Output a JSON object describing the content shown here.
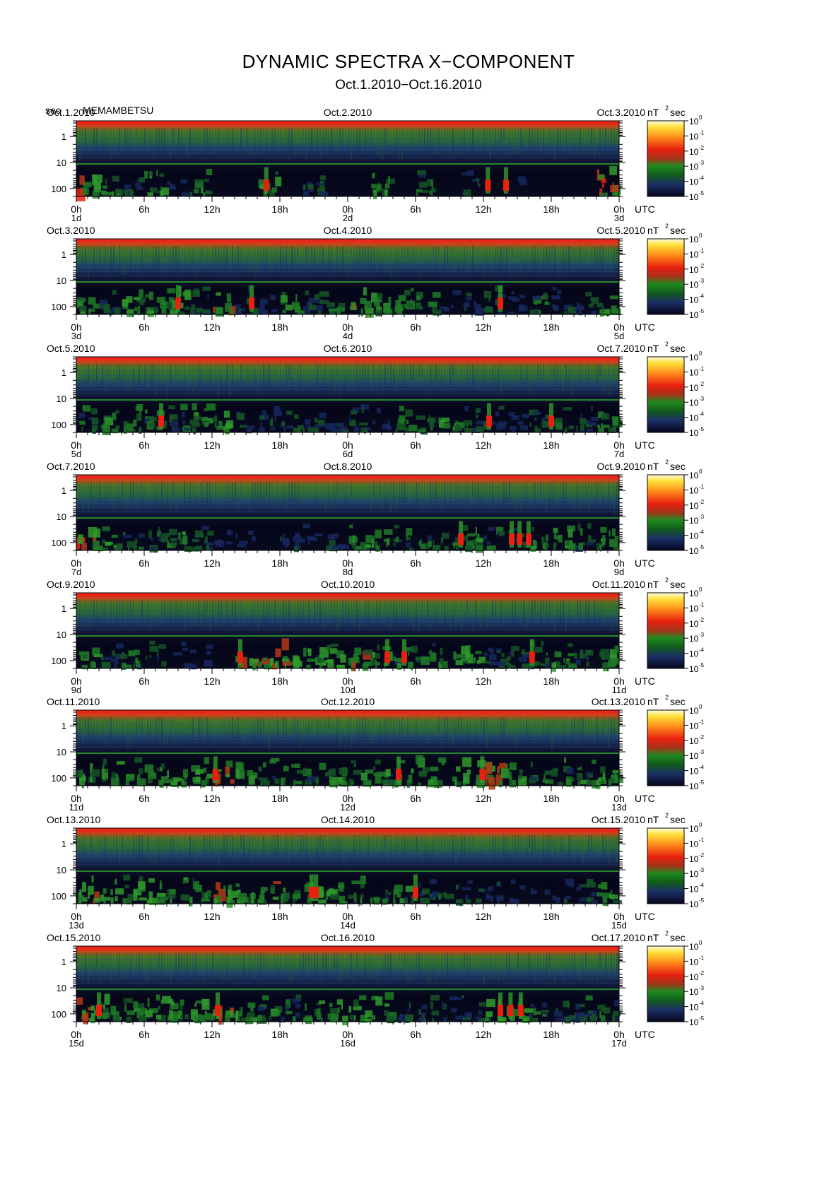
{
  "title": "DYNAMIC SPECTRA X−COMPONENT",
  "subtitle": "Oct.1.2010−Oct.16.2010",
  "y_unit": "sec",
  "station": "MEMAMBETSU",
  "utc_label": "UTC",
  "colorbar_unit_base": "nT",
  "colorbar_unit_exp": "2",
  "colorbar_unit_suffix": "sec",
  "colors": {
    "background": "#ffffff",
    "spectrum_low": "#06061c",
    "spectrum_mid": "#1f8a1f",
    "spectrum_high": "#e8200f",
    "spectrum_max": "#ffe23a"
  },
  "chart_data": {
    "type": "heatmap",
    "xlabel": "UTC",
    "ylabel": "sec",
    "y_ticks": [
      "1",
      "10",
      "100"
    ],
    "x_tick_labels": [
      "0h",
      "6h",
      "12h",
      "18h",
      "0h",
      "6h",
      "12h",
      "18h",
      "0h"
    ],
    "colorbar": {
      "unit": "nT²sec",
      "ticks": [
        {
          "base": "10",
          "exp": "0"
        },
        {
          "base": "10",
          "exp": "-1"
        },
        {
          "base": "10",
          "exp": "-2"
        },
        {
          "base": "10",
          "exp": "-3"
        },
        {
          "base": "10",
          "exp": "-4"
        },
        {
          "base": "10",
          "exp": "-5"
        }
      ]
    },
    "panels": [
      {
        "date_left": "Oct.1.2010",
        "date_mid": "Oct.2.2010",
        "date_right": "Oct.3.2010",
        "day_left": "1d",
        "day_mid": "2d",
        "day_right": "3d",
        "activity": [
          0.75,
          0.5,
          0.3,
          0.6,
          0.2,
          0.5,
          0.1,
          0.1,
          0.55,
          0.1,
          0.35,
          0.05,
          0.1,
          0.5,
          0.1,
          0.45,
          0.15,
          0.3,
          0.1,
          0.2,
          0.1,
          0.15,
          0.15,
          0.8
        ],
        "bursts": [
          16.8,
          36.4,
          38.0
        ]
      },
      {
        "date_left": "Oct.3.2010",
        "date_mid": "Oct.4.2010",
        "date_right": "Oct.5.2010",
        "day_left": "3d",
        "day_mid": "4d",
        "day_right": "5d",
        "activity": [
          0.6,
          0.3,
          0.55,
          0.5,
          0.6,
          0.35,
          0.7,
          0.3,
          0.2,
          0.5,
          0.35,
          0.4,
          0.75,
          0.5,
          0.55,
          0.4,
          0.2,
          0.3,
          0.35,
          0.25,
          0.4,
          0.3,
          0.35,
          0.55
        ],
        "bursts": [
          9.0,
          15.5,
          37.5
        ]
      },
      {
        "date_left": "Oct.5.2010",
        "date_mid": "Oct.6.2010",
        "date_right": "Oct.7.2010",
        "day_left": "5d",
        "day_mid": "6d",
        "day_right": "7d",
        "activity": [
          0.4,
          0.6,
          0.5,
          0.45,
          0.4,
          0.5,
          0.6,
          0.3,
          0.3,
          0.35,
          0.3,
          0.3,
          0.35,
          0.25,
          0.5,
          0.45,
          0.5,
          0.35,
          0.3,
          0.25,
          0.3,
          0.4,
          0.35,
          0.5
        ],
        "bursts": [
          7.5,
          36.5,
          42.0
        ]
      },
      {
        "date_left": "Oct.7.2010",
        "date_mid": "Oct.8.2010",
        "date_right": "Oct.9.2010",
        "day_left": "7d",
        "day_mid": "8d",
        "day_right": "9d",
        "activity": [
          0.95,
          0.6,
          0.45,
          0.4,
          0.5,
          0.35,
          0.2,
          0.2,
          0.15,
          0.3,
          0.2,
          0.3,
          0.55,
          0.6,
          0.45,
          0.5,
          0.5,
          0.55,
          0.4,
          0.3,
          0.6,
          0.55,
          0.4,
          0.55
        ],
        "bursts": [
          34.0,
          38.5,
          39.2,
          40.0
        ]
      },
      {
        "date_left": "Oct.9.2010",
        "date_mid": "Oct.10.2010",
        "date_right": "Oct.11.2010",
        "day_left": "9d",
        "day_mid": "10d",
        "day_right": "11d",
        "activity": [
          0.5,
          0.3,
          0.45,
          0.35,
          0.2,
          0.25,
          0.1,
          0.75,
          0.7,
          0.65,
          0.65,
          0.6,
          0.7,
          0.6,
          0.5,
          0.45,
          0.55,
          0.6,
          0.3,
          0.35,
          0.4,
          0.5,
          0.3,
          0.55
        ],
        "bursts": [
          14.5,
          27.5,
          29.0,
          40.3
        ]
      },
      {
        "date_left": "Oct.11.2010",
        "date_mid": "Oct.12.2010",
        "date_right": "Oct.13.2010",
        "day_left": "11d",
        "day_mid": "12d",
        "day_right": "13d",
        "activity": [
          0.6,
          0.55,
          0.5,
          0.5,
          0.6,
          0.55,
          0.75,
          0.55,
          0.5,
          0.5,
          0.45,
          0.55,
          0.6,
          0.5,
          0.55,
          0.55,
          0.6,
          0.65,
          0.75,
          0.55,
          0.45,
          0.5,
          0.5,
          0.55
        ],
        "bursts": [
          12.3,
          28.5,
          35.9
        ]
      },
      {
        "date_left": "Oct.13.2010",
        "date_mid": "Oct.14.2010",
        "date_right": "Oct.15.2010",
        "day_left": "13d",
        "day_mid": "14d",
        "day_right": "15d",
        "activity": [
          0.7,
          0.65,
          0.55,
          0.6,
          0.55,
          0.5,
          0.7,
          0.55,
          0.65,
          0.5,
          0.6,
          0.55,
          0.5,
          0.45,
          0.5,
          0.35,
          0.4,
          0.3,
          0.25,
          0.2,
          0.2,
          0.25,
          0.3,
          0.5
        ],
        "bursts": [
          20.8,
          21.2,
          30.0
        ]
      },
      {
        "date_left": "Oct.15.2010",
        "date_mid": "Oct.16.2010",
        "date_right": "Oct.17.2010",
        "day_left": "15d",
        "day_mid": "16d",
        "day_right": "17d",
        "activity": [
          0.8,
          0.6,
          0.5,
          0.55,
          0.55,
          0.6,
          0.75,
          0.55,
          0.5,
          0.45,
          0.6,
          0.55,
          0.55,
          0.5,
          0.4,
          0.35,
          0.3,
          0.35,
          0.7,
          0.65,
          0.4,
          0.35,
          0.4,
          0.45
        ],
        "bursts": [
          2.0,
          12.5,
          37.5,
          38.4,
          39.3
        ]
      }
    ]
  }
}
